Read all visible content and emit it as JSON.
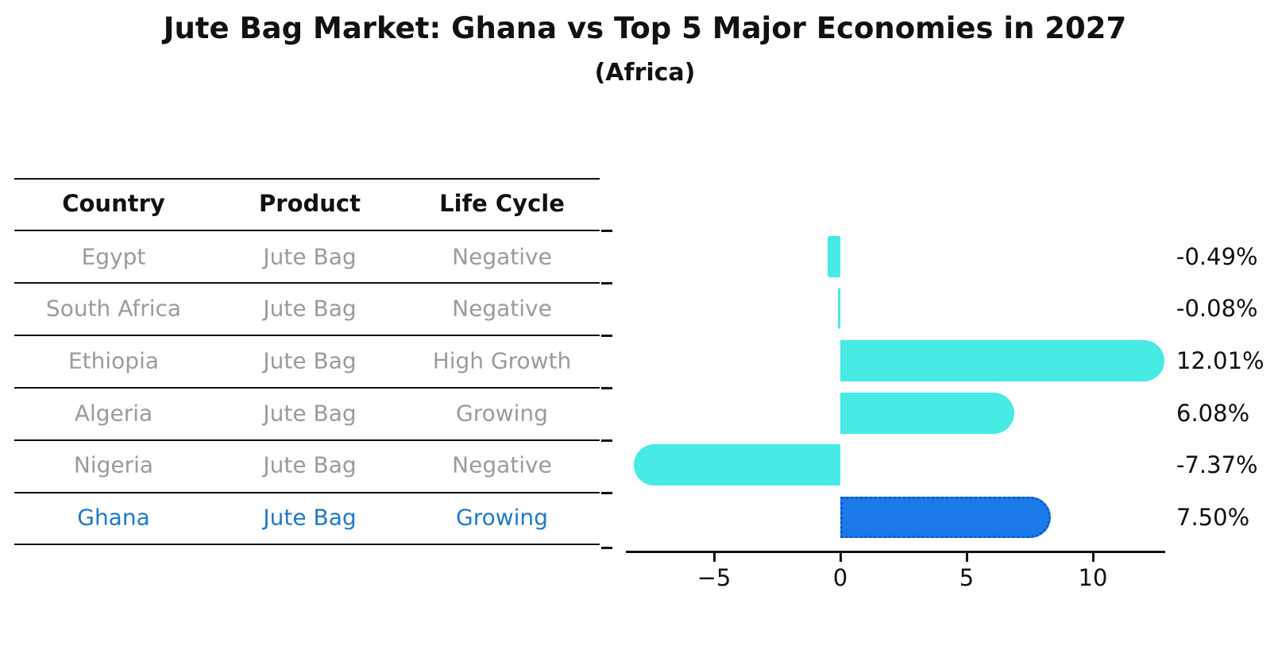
{
  "title": "Jute Bag Market: Ghana vs Top 5 Major Economies in 2027",
  "subtitle": "(Africa)",
  "table": {
    "headers": [
      "Country",
      "Product",
      "Life Cycle"
    ],
    "rows": [
      {
        "country": "Egypt",
        "product": "Jute Bag",
        "life_cycle": "Negative",
        "highlight": false
      },
      {
        "country": "South Africa",
        "product": "Jute Bag",
        "life_cycle": "Negative",
        "highlight": false
      },
      {
        "country": "Ethiopia",
        "product": "Jute Bag",
        "life_cycle": "High Growth",
        "highlight": false
      },
      {
        "country": "Algeria",
        "product": "Jute Bag",
        "life_cycle": "Growing",
        "highlight": false
      },
      {
        "country": "Nigeria",
        "product": "Jute Bag",
        "life_cycle": "Negative",
        "highlight": false
      },
      {
        "country": "Ghana",
        "product": "Jute Bag",
        "life_cycle": "Growing",
        "highlight": true
      }
    ]
  },
  "chart_data": {
    "type": "bar",
    "orientation": "horizontal",
    "categories": [
      "Egypt",
      "South Africa",
      "Ethiopia",
      "Algeria",
      "Nigeria",
      "Ghana"
    ],
    "values": [
      -0.49,
      -0.08,
      12.01,
      6.08,
      -7.37,
      7.5
    ],
    "value_labels": [
      "-0.49%",
      "-0.08%",
      "12.01%",
      "6.08%",
      "-7.37%",
      "7.50%"
    ],
    "x_ticks": [
      -5,
      0,
      5,
      10
    ],
    "x_tick_labels": [
      "−5",
      "0",
      "5",
      "10"
    ],
    "xlim": [
      -8.5,
      12.9
    ],
    "grid": false,
    "legend": false,
    "bar_color": "#48eae4",
    "highlight_index": 5,
    "highlight_bar_color": "#1b7ae8",
    "highlight_bar_border_color": "#0d5bce",
    "title": "Jute Bag Market: Ghana vs Top 5 Major Economies in 2027",
    "subtitle": "(Africa)"
  },
  "colors": {
    "background": "#ffffff",
    "text_primary": "#111111",
    "text_muted": "#9b9b9b",
    "highlight_text": "#1e7ac9",
    "divider": "#111111"
  }
}
